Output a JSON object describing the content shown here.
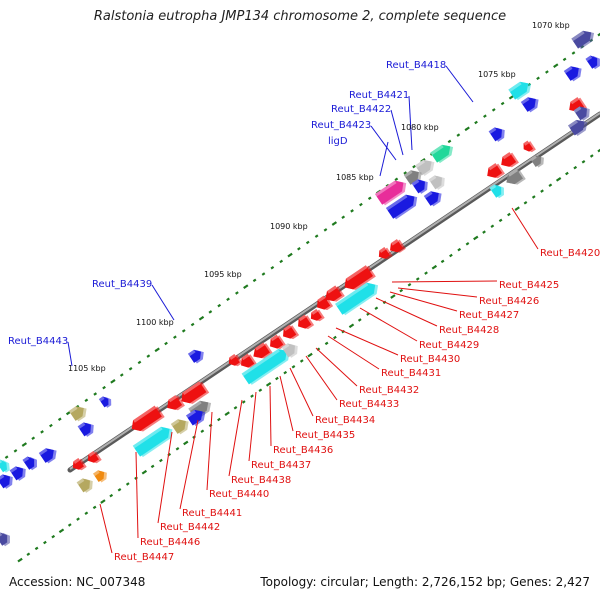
{
  "title": "Ralstonia eutropha JMP134 chromosome 2, complete sequence",
  "footer": {
    "accession": "Accession: NC_007348",
    "summary": "Topology: circular; Length: 2,726,152 bp; Genes: 2,427"
  },
  "colors": {
    "backbone": "#8a8a8a",
    "tick": "#1f7a1f",
    "forward_label": "#1a1ad6",
    "reverse_label": "#e01010",
    "red": "#ee1111",
    "blue": "#1a1ae0",
    "cyan": "#20e0e8",
    "green": "#20d89a",
    "magenta": "#e82d9a",
    "gray": "#808080",
    "lightgray": "#c0c0c0",
    "olive": "#b5a860",
    "orange": "#f08a10",
    "navy": "#4a4aa0"
  },
  "ticks": [
    {
      "label": "1070 kbp"
    },
    {
      "label": "1075 kbp"
    },
    {
      "label": "1080 kbp"
    },
    {
      "label": "1085 kbp"
    },
    {
      "label": "1090 kbp"
    },
    {
      "label": "1095 kbp"
    },
    {
      "label": "1100 kbp"
    },
    {
      "label": "1105 kbp"
    }
  ],
  "labels_forward": [
    "Reut_B4418",
    "Reut_B4421",
    "Reut_B4422",
    "Reut_B4423",
    "ligD",
    "Reut_B4439",
    "Reut_B4443"
  ],
  "labels_reverse": [
    "Reut_B4420",
    "Reut_B4425",
    "Reut_B4426",
    "Reut_B4427",
    "Reut_B4428",
    "Reut_B4429",
    "Reut_B4430",
    "Reut_B4431",
    "Reut_B4432",
    "Reut_B4433",
    "Reut_B4434",
    "Reut_B4435",
    "Reut_B4436",
    "Reut_B4437",
    "Reut_B4438",
    "Reut_B4440",
    "Reut_B4441",
    "Reut_B4442",
    "Reut_B4446",
    "Reut_B4447"
  ]
}
